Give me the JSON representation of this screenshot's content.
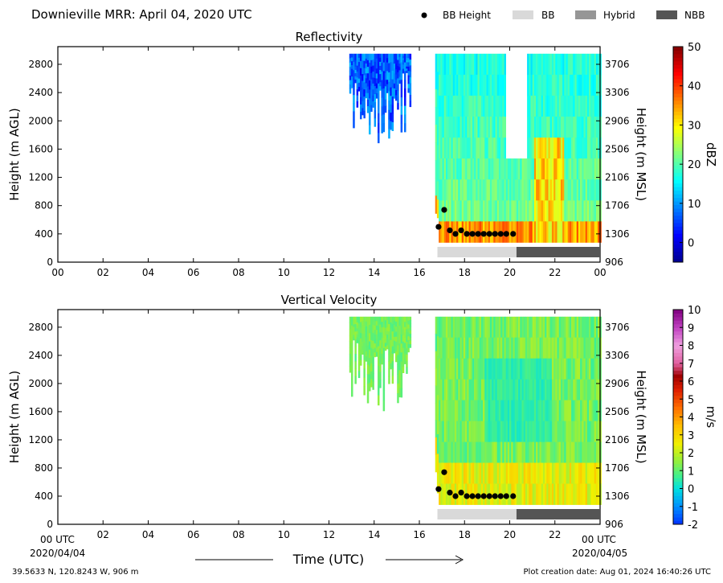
{
  "header": {
    "title": "Downieville MRR:  April 04, 2020 UTC",
    "legend": [
      {
        "label": "BB Height",
        "swatch": "dot",
        "color": "#000000"
      },
      {
        "label": "BB",
        "swatch": "rect",
        "color": "#d9d9d9"
      },
      {
        "label": "Hybrid",
        "swatch": "rect",
        "color": "#969696"
      },
      {
        "label": "NBB",
        "swatch": "rect",
        "color": "#555555"
      }
    ]
  },
  "footer": {
    "location": "39.5633 N, 120.8243 W, 906 m",
    "creation": "Plot creation date: Aug 01, 2024 16:40:26 UTC",
    "time_axis_label": "Time (UTC)",
    "x_start_label": "00 UTC",
    "x_end_label": "00 UTC",
    "date_start": "2020/04/04",
    "date_end": "2020/04/05"
  },
  "chart_data": [
    {
      "type": "heatmap",
      "title": "Reflectivity",
      "ylabel": "Height (m AGL)",
      "ylabel_right": "Height (m MSL)",
      "xlim": [
        0,
        24
      ],
      "ylim": [
        0,
        3050
      ],
      "x_ticks": [
        "00",
        "02",
        "04",
        "06",
        "08",
        "10",
        "12",
        "14",
        "16",
        "18",
        "20",
        "22",
        "00"
      ],
      "y_ticks": [
        0,
        400,
        800,
        1200,
        1600,
        2000,
        2400,
        2800
      ],
      "y_ticks_right": [
        906,
        1306,
        1706,
        2106,
        2506,
        2906,
        3306,
        3706
      ],
      "colorbar": {
        "label": "dBZ",
        "min": -5,
        "max": 50,
        "ticks": [
          0,
          10,
          20,
          30,
          40,
          50
        ]
      },
      "echo_regions": [
        {
          "start": 12.9,
          "end": 15.6,
          "top": 2950,
          "base_min": 1600,
          "value": 4
        },
        {
          "start": 16.7,
          "end": 24.0,
          "top": 2950,
          "base_min": 280,
          "value": 18
        }
      ],
      "bright_band_heights": [
        {
          "x": 16.85,
          "y": 500
        },
        {
          "x": 17.1,
          "y": 740
        },
        {
          "x": 17.35,
          "y": 450
        },
        {
          "x": 17.6,
          "y": 400
        },
        {
          "x": 17.85,
          "y": 450
        },
        {
          "x": 18.1,
          "y": 400
        },
        {
          "x": 18.35,
          "y": 400
        },
        {
          "x": 18.6,
          "y": 400
        },
        {
          "x": 18.85,
          "y": 400
        },
        {
          "x": 19.1,
          "y": 400
        },
        {
          "x": 19.35,
          "y": 400
        },
        {
          "x": 19.6,
          "y": 400
        },
        {
          "x": 19.85,
          "y": 400
        },
        {
          "x": 20.15,
          "y": 400
        }
      ],
      "bb_bar": [
        {
          "start": 16.8,
          "end": 20.3,
          "class": "BB"
        },
        {
          "start": 20.3,
          "end": 24.0,
          "class": "NBB"
        }
      ]
    },
    {
      "type": "heatmap",
      "title": "Vertical Velocity",
      "ylabel": "Height (m AGL)",
      "ylabel_right": "Height (m MSL)",
      "xlim": [
        0,
        24
      ],
      "ylim": [
        0,
        3050
      ],
      "x_ticks": [
        "00",
        "02",
        "04",
        "06",
        "08",
        "10",
        "12",
        "14",
        "16",
        "18",
        "20",
        "22",
        "00"
      ],
      "y_ticks": [
        0,
        400,
        800,
        1200,
        1600,
        2000,
        2400,
        2800
      ],
      "y_ticks_right": [
        906,
        1306,
        1706,
        2106,
        2506,
        2906,
        3306,
        3706
      ],
      "colorbar": {
        "label": "m/s",
        "min": -2,
        "max": 10,
        "ticks": [
          -2,
          -1,
          0,
          1,
          2,
          3,
          4,
          5,
          6,
          7,
          8,
          9,
          10
        ]
      },
      "echo_regions": [
        {
          "start": 12.9,
          "end": 15.6,
          "top": 2950,
          "base_min": 1600,
          "value": 1
        },
        {
          "start": 16.7,
          "end": 24.0,
          "top": 2950,
          "base_min": 280,
          "value": 1.2
        }
      ],
      "bright_band_heights": [
        {
          "x": 16.85,
          "y": 500
        },
        {
          "x": 17.1,
          "y": 740
        },
        {
          "x": 17.35,
          "y": 450
        },
        {
          "x": 17.6,
          "y": 400
        },
        {
          "x": 17.85,
          "y": 450
        },
        {
          "x": 18.1,
          "y": 400
        },
        {
          "x": 18.35,
          "y": 400
        },
        {
          "x": 18.6,
          "y": 400
        },
        {
          "x": 18.85,
          "y": 400
        },
        {
          "x": 19.1,
          "y": 400
        },
        {
          "x": 19.35,
          "y": 400
        },
        {
          "x": 19.6,
          "y": 400
        },
        {
          "x": 19.85,
          "y": 400
        },
        {
          "x": 20.15,
          "y": 400
        }
      ],
      "bb_bar": [
        {
          "start": 16.8,
          "end": 20.3,
          "class": "BB"
        },
        {
          "start": 20.3,
          "end": 24.0,
          "class": "NBB"
        }
      ]
    }
  ]
}
